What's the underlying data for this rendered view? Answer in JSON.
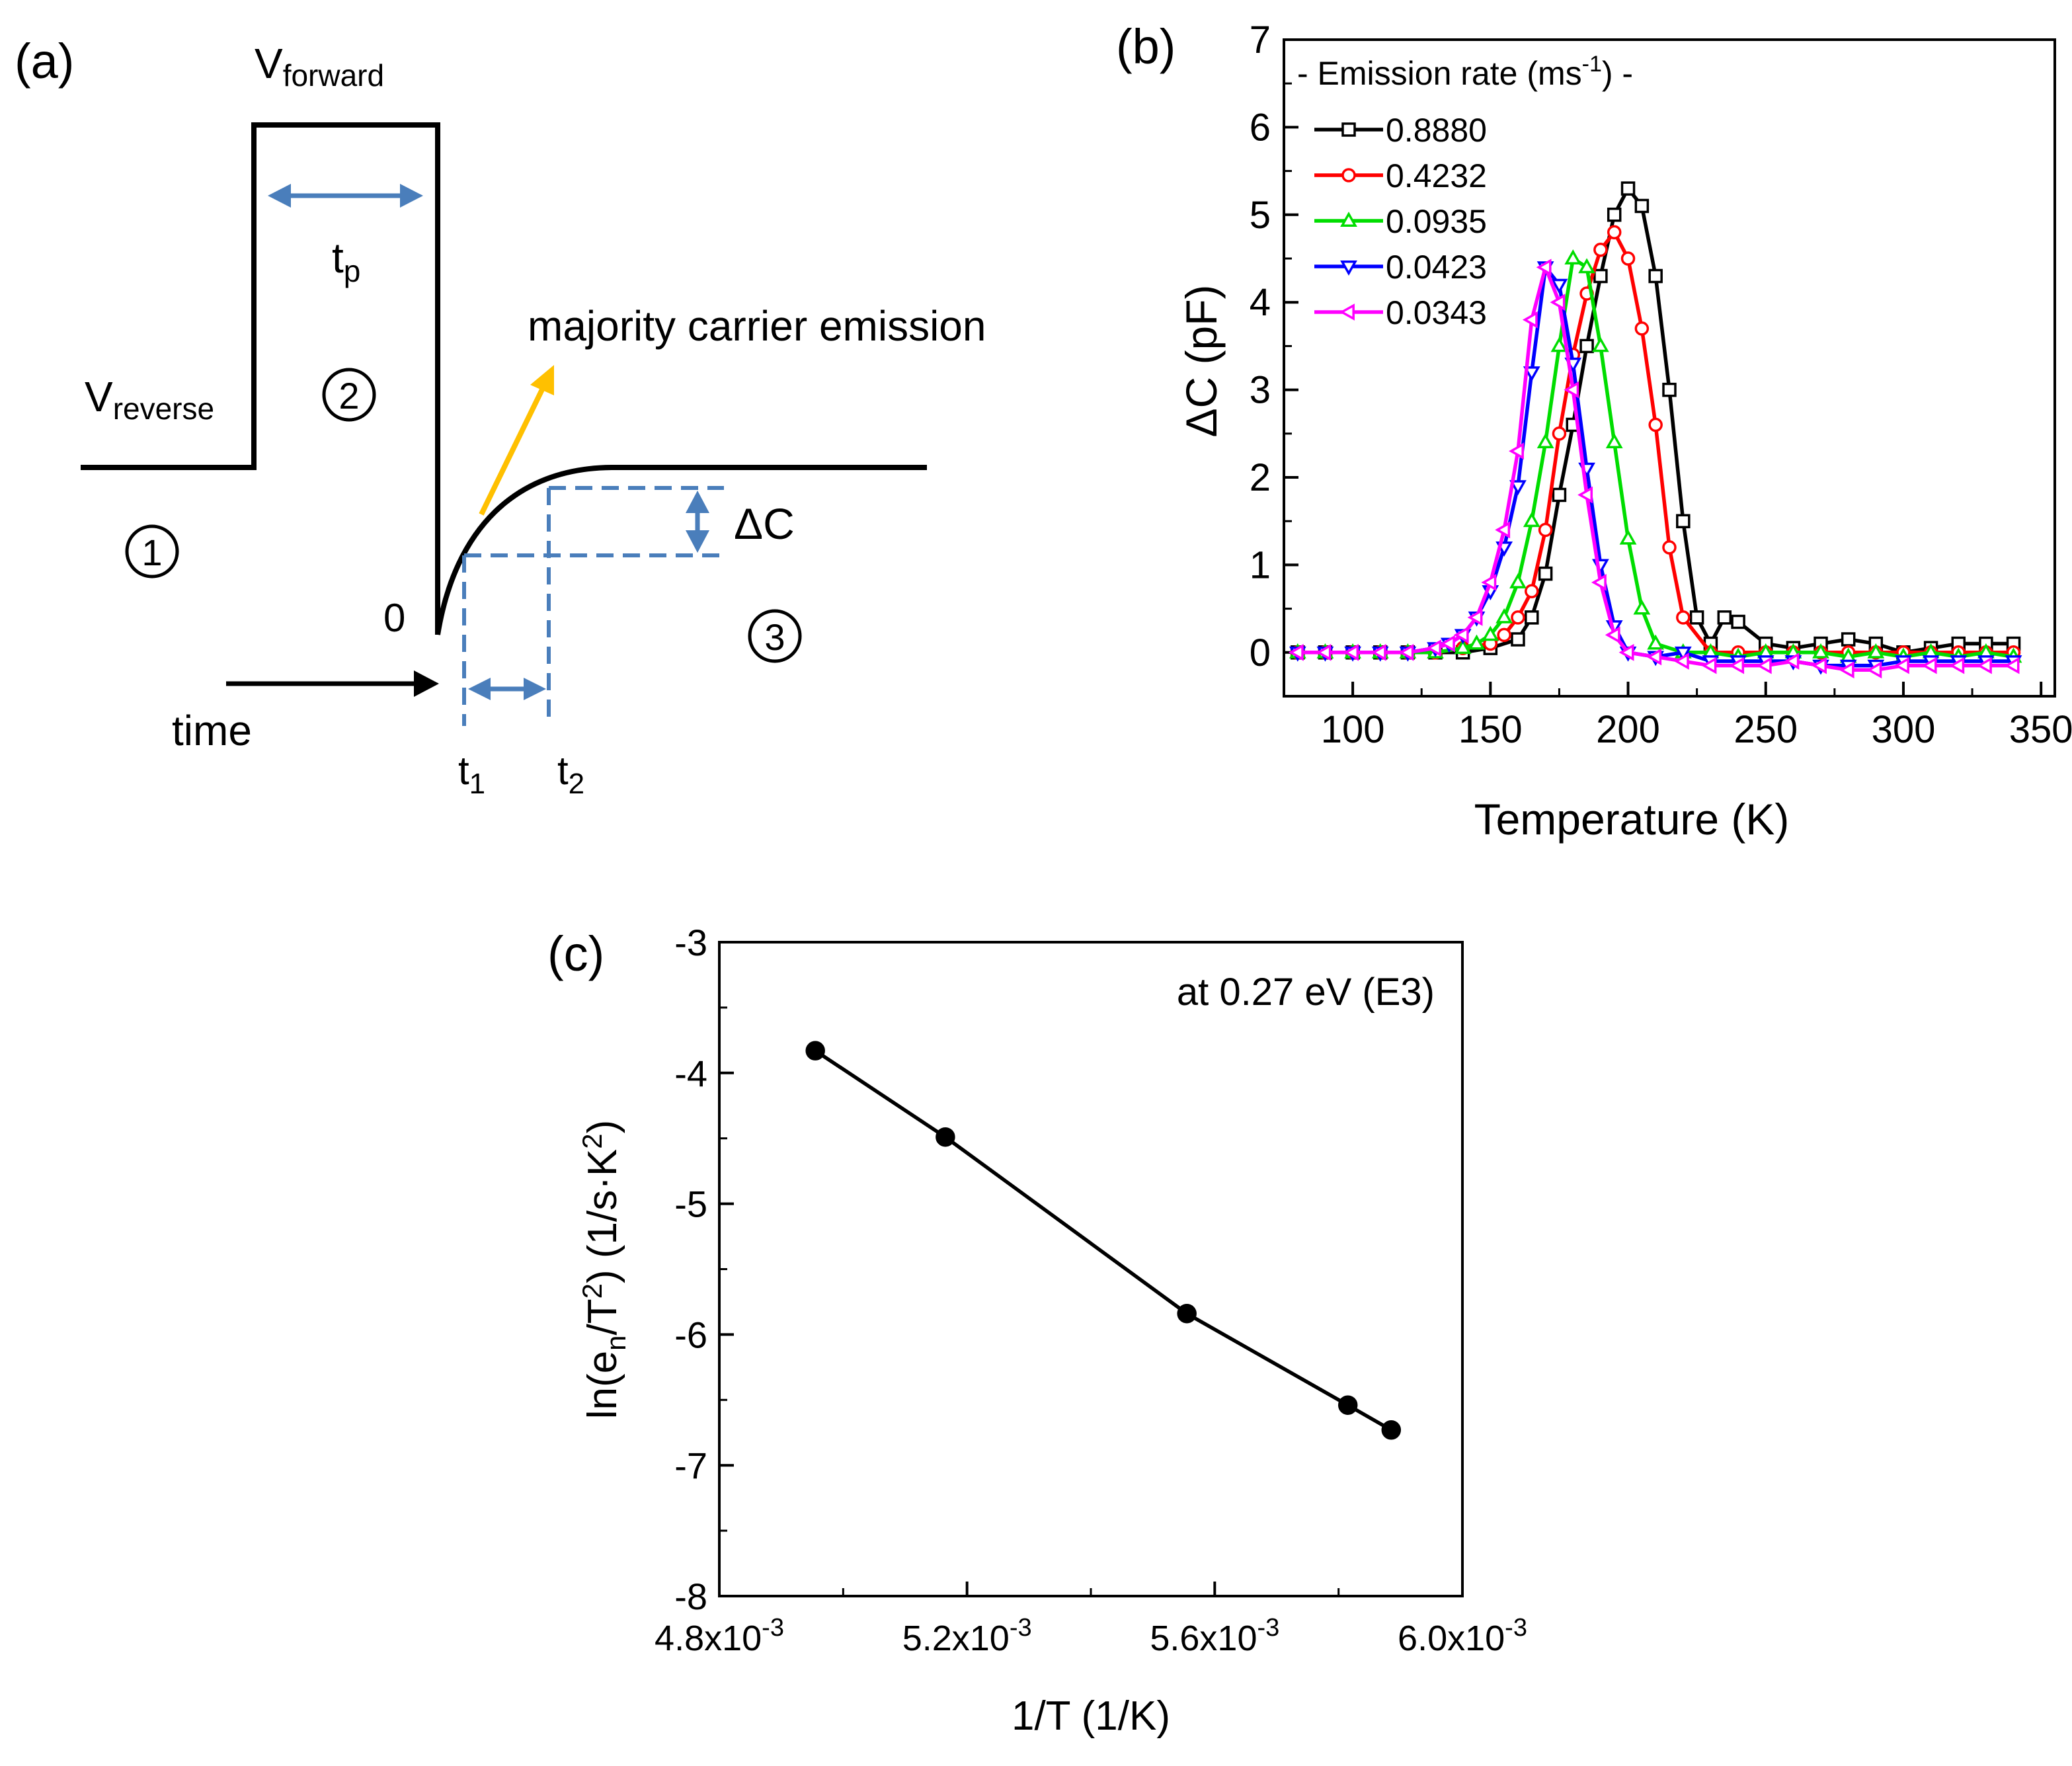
{
  "panel_a": {
    "label": "(a)",
    "v_forward": {
      "main": "V",
      "sub": "forward"
    },
    "v_reverse": {
      "main": "V",
      "sub": "reverse"
    },
    "tp": {
      "main": "t",
      "sub": "p"
    },
    "majority_carrier_emission": "majority carrier emission",
    "circle_1": "1",
    "circle_2": "2",
    "circle_3": "3",
    "zero": "0",
    "time": "time",
    "t1": {
      "main": "t",
      "sub": "1"
    },
    "t2": {
      "main": "t",
      "sub": "2"
    },
    "delta_c": "ΔC",
    "colors": {
      "pulse": "#000000",
      "arrow_blue": "#4a7ebb",
      "dashed": "#4a7ebb",
      "emission_arrow": "#ffc000"
    }
  },
  "chart_data": [
    {
      "type": "line",
      "panel": "(b)",
      "panel_label": "(b)",
      "xlabel": "Temperature (K)",
      "ylabel": "ΔC (pF)",
      "xlim": [
        75,
        355
      ],
      "ylim": [
        -0.5,
        7
      ],
      "xticks": [
        100,
        150,
        200,
        250,
        300,
        350
      ],
      "yticks": [
        0,
        1,
        2,
        3,
        4,
        5,
        6,
        7
      ],
      "xtick_labels": [
        "100",
        "150",
        "200",
        "250",
        "300",
        "350"
      ],
      "ytick_labels": [
        "0",
        "1",
        "2",
        "3",
        "4",
        "5",
        "6",
        "7"
      ],
      "legend_title": {
        "pre": "- Emission rate (ms",
        "sup": "-1",
        "post": ") -"
      },
      "legend_position": "top-left",
      "grid": false,
      "series": [
        {
          "name": "0.8880",
          "color": "#000000",
          "marker": "square",
          "x": [
            80,
            90,
            100,
            110,
            120,
            130,
            140,
            150,
            160,
            165,
            170,
            175,
            180,
            185,
            190,
            195,
            200,
            205,
            210,
            215,
            220,
            225,
            230,
            235,
            240,
            250,
            260,
            270,
            280,
            290,
            300,
            310,
            320,
            330,
            340
          ],
          "y": [
            0,
            0,
            0,
            0,
            0,
            0,
            0,
            0.05,
            0.15,
            0.4,
            0.9,
            1.8,
            2.6,
            3.5,
            4.3,
            5.0,
            5.3,
            5.1,
            4.3,
            3.0,
            1.5,
            0.4,
            0.1,
            0.4,
            0.35,
            0.1,
            0.05,
            0.1,
            0.15,
            0.1,
            0,
            0.05,
            0.1,
            0.1,
            0.1
          ]
        },
        {
          "name": "0.4232",
          "color": "#ff0000",
          "marker": "circle",
          "x": [
            80,
            90,
            100,
            110,
            120,
            130,
            140,
            150,
            155,
            160,
            165,
            170,
            175,
            180,
            185,
            190,
            195,
            200,
            205,
            210,
            215,
            220,
            230,
            240,
            250,
            260,
            270,
            280,
            290,
            300,
            310,
            320,
            330,
            340
          ],
          "y": [
            0,
            0,
            0,
            0,
            0,
            0,
            0.05,
            0.1,
            0.2,
            0.4,
            0.7,
            1.4,
            2.5,
            3.4,
            4.1,
            4.6,
            4.8,
            4.5,
            3.7,
            2.6,
            1.2,
            0.4,
            0,
            0,
            0,
            0,
            0,
            0,
            0,
            0,
            0,
            0,
            0,
            0
          ]
        },
        {
          "name": "0.0935",
          "color": "#00dd00",
          "marker": "triangle-up",
          "x": [
            80,
            90,
            100,
            110,
            120,
            130,
            140,
            145,
            150,
            155,
            160,
            165,
            170,
            175,
            180,
            185,
            190,
            195,
            200,
            205,
            210,
            220,
            230,
            240,
            250,
            260,
            270,
            280,
            290,
            300,
            310,
            320,
            330,
            340
          ],
          "y": [
            0,
            0,
            0,
            0,
            0,
            0,
            0.05,
            0.1,
            0.2,
            0.4,
            0.8,
            1.5,
            2.4,
            3.5,
            4.5,
            4.4,
            3.5,
            2.4,
            1.3,
            0.5,
            0.1,
            0,
            0,
            -0.05,
            0,
            0,
            0,
            -0.05,
            0,
            -0.05,
            0,
            -0.05,
            0,
            -0.05
          ]
        },
        {
          "name": "0.0423",
          "color": "#0000ff",
          "marker": "triangle-down",
          "x": [
            80,
            90,
            100,
            110,
            120,
            130,
            135,
            140,
            145,
            150,
            155,
            160,
            165,
            170,
            175,
            180,
            185,
            190,
            195,
            200,
            210,
            220,
            230,
            240,
            250,
            260,
            270,
            280,
            290,
            300,
            310,
            320,
            330,
            340
          ],
          "y": [
            0,
            0,
            0,
            0,
            0,
            0.05,
            0.1,
            0.2,
            0.4,
            0.7,
            1.2,
            1.9,
            3.2,
            4.4,
            4.2,
            3.3,
            2.1,
            1.0,
            0.3,
            0,
            -0.05,
            0,
            -0.1,
            -0.1,
            -0.1,
            -0.1,
            -0.15,
            -0.15,
            -0.15,
            -0.1,
            -0.1,
            -0.1,
            -0.1,
            -0.1
          ]
        },
        {
          "name": "0.0343",
          "color": "#ff00ff",
          "marker": "triangle-left",
          "x": [
            80,
            90,
            100,
            110,
            120,
            130,
            135,
            140,
            145,
            150,
            155,
            160,
            165,
            170,
            175,
            180,
            185,
            190,
            195,
            200,
            210,
            220,
            230,
            240,
            250,
            260,
            270,
            280,
            290,
            300,
            310,
            320,
            330,
            340
          ],
          "y": [
            0,
            0,
            0,
            0,
            0,
            0.05,
            0.1,
            0.2,
            0.4,
            0.8,
            1.4,
            2.3,
            3.8,
            4.4,
            4.0,
            3.0,
            1.8,
            0.8,
            0.2,
            0,
            -0.05,
            -0.1,
            -0.15,
            -0.15,
            -0.15,
            -0.1,
            -0.15,
            -0.2,
            -0.2,
            -0.15,
            -0.15,
            -0.15,
            -0.15,
            -0.15
          ]
        }
      ]
    },
    {
      "type": "line",
      "panel": "(c)",
      "panel_label": "(c)",
      "annotation": "at 0.27 eV (E3)",
      "xlabel": "1/T (1/K)",
      "ylabel": {
        "pre": "ln(e",
        "sub1": "n",
        "mid": "/T",
        "sup1": "2",
        "post": ") (1/s·K",
        "sup2": "2",
        "end": ")"
      },
      "xlim": [
        0.0048,
        0.006
      ],
      "ylim": [
        -8,
        -3
      ],
      "xticks": [
        0.0048,
        0.0052,
        0.0056,
        0.006
      ],
      "xtick_labels": [
        {
          "mant": "4.8x10",
          "exp": "-3"
        },
        {
          "mant": "5.2x10",
          "exp": "-3"
        },
        {
          "mant": "5.6x10",
          "exp": "-3"
        },
        {
          "mant": "6.0x10",
          "exp": "-3"
        }
      ],
      "yticks": [
        -3,
        -4,
        -5,
        -6,
        -7,
        -8
      ],
      "ytick_labels": [
        "-3",
        "-4",
        "-5",
        "-6",
        "-7",
        "-8"
      ],
      "grid": false,
      "series": [
        {
          "color": "#000000",
          "marker": "filled-circle",
          "x": [
            0.004955,
            0.005165,
            0.005555,
            0.005815,
            0.005885
          ],
          "y": [
            -3.83,
            -4.49,
            -5.84,
            -6.54,
            -6.73
          ]
        }
      ]
    }
  ]
}
